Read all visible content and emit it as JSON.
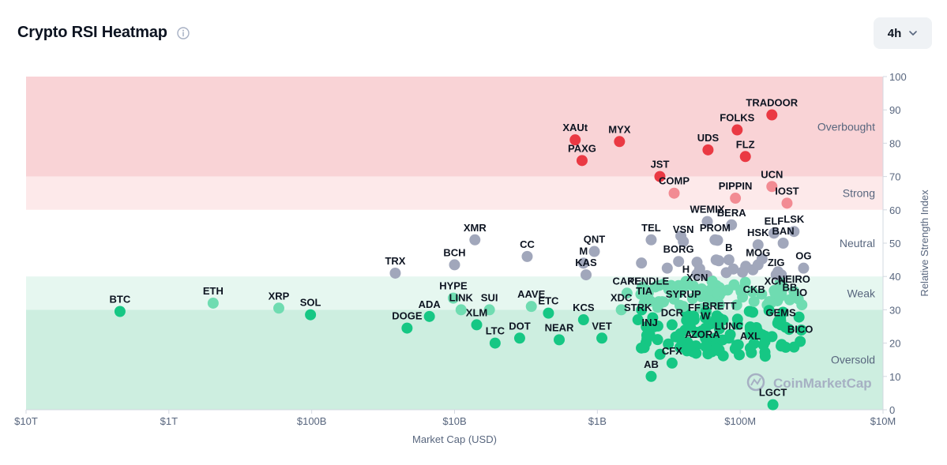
{
  "header": {
    "title": "Crypto RSI Heatmap",
    "timeframe": "4h"
  },
  "icons": {
    "info": "info-icon",
    "chevron": "chevron-down-icon"
  },
  "watermark": "CoinMarketCap",
  "colors": {
    "overbought_bg": "#f9d3d6",
    "strong_bg": "#fde9ea",
    "neutral_bg": "#ffffff",
    "weak_bg": "#e6f7f0",
    "oversold_bg": "#cdeee0",
    "overbought": "#ea3943",
    "strong": "#f28b93",
    "neutral": "#a1a7bb",
    "weak": "#6fdcb1",
    "oversold": "#16c784"
  },
  "chart_data": {
    "type": "scatter",
    "title": "Crypto RSI Heatmap",
    "xlabel": "Market Cap (USD)",
    "ylabel": "Relative Strength Index",
    "x_scale": "log",
    "xlim": [
      10000000,
      10000000000000
    ],
    "x_ticks": [
      {
        "value": 10000000000000,
        "label": "$10T"
      },
      {
        "value": 1000000000000,
        "label": "$1T"
      },
      {
        "value": 100000000000,
        "label": "$100B"
      },
      {
        "value": 10000000000,
        "label": "$10B"
      },
      {
        "value": 1000000000,
        "label": "$1B"
      },
      {
        "value": 100000000,
        "label": "$100M"
      },
      {
        "value": 10000000,
        "label": "$10M"
      }
    ],
    "ylim": [
      0,
      100
    ],
    "y_ticks": [
      0,
      10,
      20,
      30,
      40,
      50,
      60,
      70,
      80,
      90,
      100
    ],
    "y_axis_side": "right",
    "zones": [
      {
        "name": "Overbought",
        "from": 70,
        "to": 100
      },
      {
        "name": "Strong",
        "from": 60,
        "to": 70
      },
      {
        "name": "Neutral",
        "from": 40,
        "to": 60
      },
      {
        "name": "Weak",
        "from": 30,
        "to": 40
      },
      {
        "name": "Oversold",
        "from": 0,
        "to": 30
      }
    ],
    "points": [
      {
        "name": "BTC",
        "cap": 2200000000000,
        "rsi": 29.5
      },
      {
        "name": "ETH",
        "cap": 490000000000,
        "rsi": 32
      },
      {
        "name": "XRP",
        "cap": 170000000000,
        "rsi": 30.5
      },
      {
        "name": "SOL",
        "cap": 102000000000,
        "rsi": 28.5
      },
      {
        "name": "TRX",
        "cap": 26000000000,
        "rsi": 41
      },
      {
        "name": "DOGE",
        "cap": 21500000000,
        "rsi": 24.5
      },
      {
        "name": "ADA",
        "cap": 15000000000,
        "rsi": 28
      },
      {
        "name": "HYPE",
        "cap": 10200000000,
        "rsi": 33.5
      },
      {
        "name": "BCH",
        "cap": 10000000000,
        "rsi": 43.5
      },
      {
        "name": "LINK",
        "cap": 9000000000,
        "rsi": 30
      },
      {
        "name": "XMR",
        "cap": 7200000000,
        "rsi": 51
      },
      {
        "name": "XLM",
        "cap": 7000000000,
        "rsi": 25.5
      },
      {
        "name": "SUI",
        "cap": 5700000000,
        "rsi": 30
      },
      {
        "name": "LTC",
        "cap": 5200000000,
        "rsi": 20
      },
      {
        "name": "DOT",
        "cap": 3500000000,
        "rsi": 21.5
      },
      {
        "name": "CC",
        "cap": 3100000000,
        "rsi": 46
      },
      {
        "name": "AAVE",
        "cap": 2900000000,
        "rsi": 31
      },
      {
        "name": "ETC",
        "cap": 2200000000,
        "rsi": 29
      },
      {
        "name": "NEAR",
        "cap": 1850000000,
        "rsi": 21
      },
      {
        "name": "XAUt",
        "cap": 1430000000,
        "rsi": 81
      },
      {
        "name": "PAXG",
        "cap": 1280000000,
        "rsi": 74.8
      },
      {
        "name": "KCS",
        "cap": 1250000000,
        "rsi": 27
      },
      {
        "name": "M",
        "cap": 1250000000,
        "rsi": 44
      },
      {
        "name": "KAS",
        "cap": 1200000000,
        "rsi": 40.5
      },
      {
        "name": "QNT",
        "cap": 1050000000,
        "rsi": 47.5
      },
      {
        "name": "VET",
        "cap": 930000000,
        "rsi": 21.5
      },
      {
        "name": "MYX",
        "cap": 700000000,
        "rsi": 80.5
      },
      {
        "name": "XDC",
        "cap": 680000000,
        "rsi": 30
      },
      {
        "name": "CAKE",
        "cap": 620000000,
        "rsi": 35
      },
      {
        "name": "STRK",
        "cap": 520000000,
        "rsi": 27
      },
      {
        "name": "TIA",
        "cap": 470000000,
        "rsi": 32
      },
      {
        "name": "PENDLE",
        "cap": 440000000,
        "rsi": 35
      },
      {
        "name": "INJ",
        "cap": 430000000,
        "rsi": 22.5
      },
      {
        "name": "TEL",
        "cap": 420000000,
        "rsi": 51
      },
      {
        "name": "AB",
        "cap": 420000000,
        "rsi": 10
      },
      {
        "name": "JST",
        "cap": 365000000,
        "rsi": 70
      },
      {
        "name": "CFX",
        "cap": 300000000,
        "rsi": 14
      },
      {
        "name": "DCR",
        "cap": 300000000,
        "rsi": 25.5
      },
      {
        "name": "COMP",
        "cap": 290000000,
        "rsi": 65
      },
      {
        "name": "BORG",
        "cap": 270000000,
        "rsi": 44.5
      },
      {
        "name": "VSN",
        "cap": 250000000,
        "rsi": 50.5
      },
      {
        "name": "SYRUP",
        "cap": 250000000,
        "rsi": 31
      },
      {
        "name": "H",
        "cap": 240000000,
        "rsi": 38.5
      },
      {
        "name": "A",
        "cap": 230000000,
        "rsi": 19
      },
      {
        "name": "FF",
        "cap": 210000000,
        "rsi": 27
      },
      {
        "name": "XCN",
        "cap": 200000000,
        "rsi": 36
      },
      {
        "name": "W",
        "cap": 175000000,
        "rsi": 24.5
      },
      {
        "name": "ZORA",
        "cap": 175000000,
        "rsi": 19
      },
      {
        "name": "WEMIX",
        "cap": 170000000,
        "rsi": 56.5
      },
      {
        "name": "UDS",
        "cap": 168000000,
        "rsi": 78
      },
      {
        "name": "PROM",
        "cap": 150000000,
        "rsi": 51
      },
      {
        "name": "BRETT",
        "cap": 140000000,
        "rsi": 27.5
      },
      {
        "name": "LUNC",
        "cap": 120000000,
        "rsi": 21.5
      },
      {
        "name": "B",
        "cap": 120000000,
        "rsi": 45
      },
      {
        "name": "BERA",
        "cap": 115000000,
        "rsi": 55.5
      },
      {
        "name": "PIPPIN",
        "cap": 108000000,
        "rsi": 63.5
      },
      {
        "name": "FOLKS",
        "cap": 105000000,
        "rsi": 84
      },
      {
        "name": "FLZ",
        "cap": 92000000,
        "rsi": 76
      },
      {
        "name": "AXL",
        "cap": 85000000,
        "rsi": 18.5
      },
      {
        "name": "CKB",
        "cap": 80000000,
        "rsi": 32.5
      },
      {
        "name": "MOG",
        "cap": 75000000,
        "rsi": 43.5
      },
      {
        "name": "HSK",
        "cap": 75000000,
        "rsi": 49.5
      },
      {
        "name": "TRADOOR",
        "cap": 60000000,
        "rsi": 88.5
      },
      {
        "name": "UCN",
        "cap": 60000000,
        "rsi": 67
      },
      {
        "name": "LGCT",
        "cap": 59000000,
        "rsi": 1.5
      },
      {
        "name": "ELF",
        "cap": 58000000,
        "rsi": 53
      },
      {
        "name": "GEMS",
        "cap": 52000000,
        "rsi": 25.5
      },
      {
        "name": "ZIG",
        "cap": 56000000,
        "rsi": 40.5
      },
      {
        "name": "XCH",
        "cap": 57000000,
        "rsi": 35
      },
      {
        "name": "BAN",
        "cap": 50000000,
        "rsi": 50
      },
      {
        "name": "IOST",
        "cap": 47000000,
        "rsi": 62
      },
      {
        "name": "BB",
        "cap": 45000000,
        "rsi": 33
      },
      {
        "name": "NEIRO",
        "cap": 42000000,
        "rsi": 35.5
      },
      {
        "name": "LSK",
        "cap": 42000000,
        "rsi": 53.5
      },
      {
        "name": "BICO",
        "cap": 38000000,
        "rsi": 20.5
      },
      {
        "name": "IO",
        "cap": 37000000,
        "rsi": 31.5
      },
      {
        "name": "OG",
        "cap": 36000000,
        "rsi": 42.5
      }
    ]
  }
}
